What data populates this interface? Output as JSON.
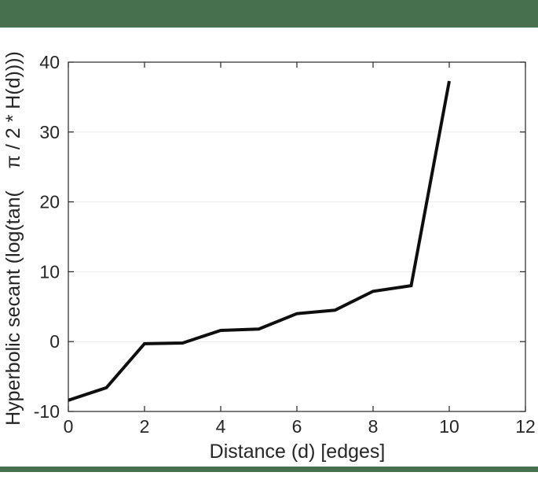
{
  "banner_color": "#47704e",
  "chart_data": {
    "type": "line",
    "x": [
      0,
      1,
      2,
      3,
      4,
      5,
      6,
      7,
      8,
      9,
      10
    ],
    "y": [
      -8.4,
      -6.6,
      -0.3,
      -0.2,
      1.6,
      1.8,
      4.0,
      4.5,
      7.2,
      8.0,
      37.3
    ],
    "xlabel": "Distance (d) [edges]",
    "ylabel": "Hyperbolic secant (log(tan(    π / 2 * H(d))))",
    "xlim": [
      0,
      12
    ],
    "ylim": [
      -10,
      40
    ],
    "xticks": [
      0,
      2,
      4,
      6,
      8,
      10,
      12
    ],
    "yticks": [
      -10,
      0,
      10,
      20,
      30,
      40
    ],
    "grid": "horizontal",
    "legend": "none",
    "line_color": "#0e0e0e",
    "line_width": 4,
    "axis_color": "#262626",
    "grid_color": "#ececec",
    "tick_font_size": 23,
    "label_font_size": 25
  }
}
